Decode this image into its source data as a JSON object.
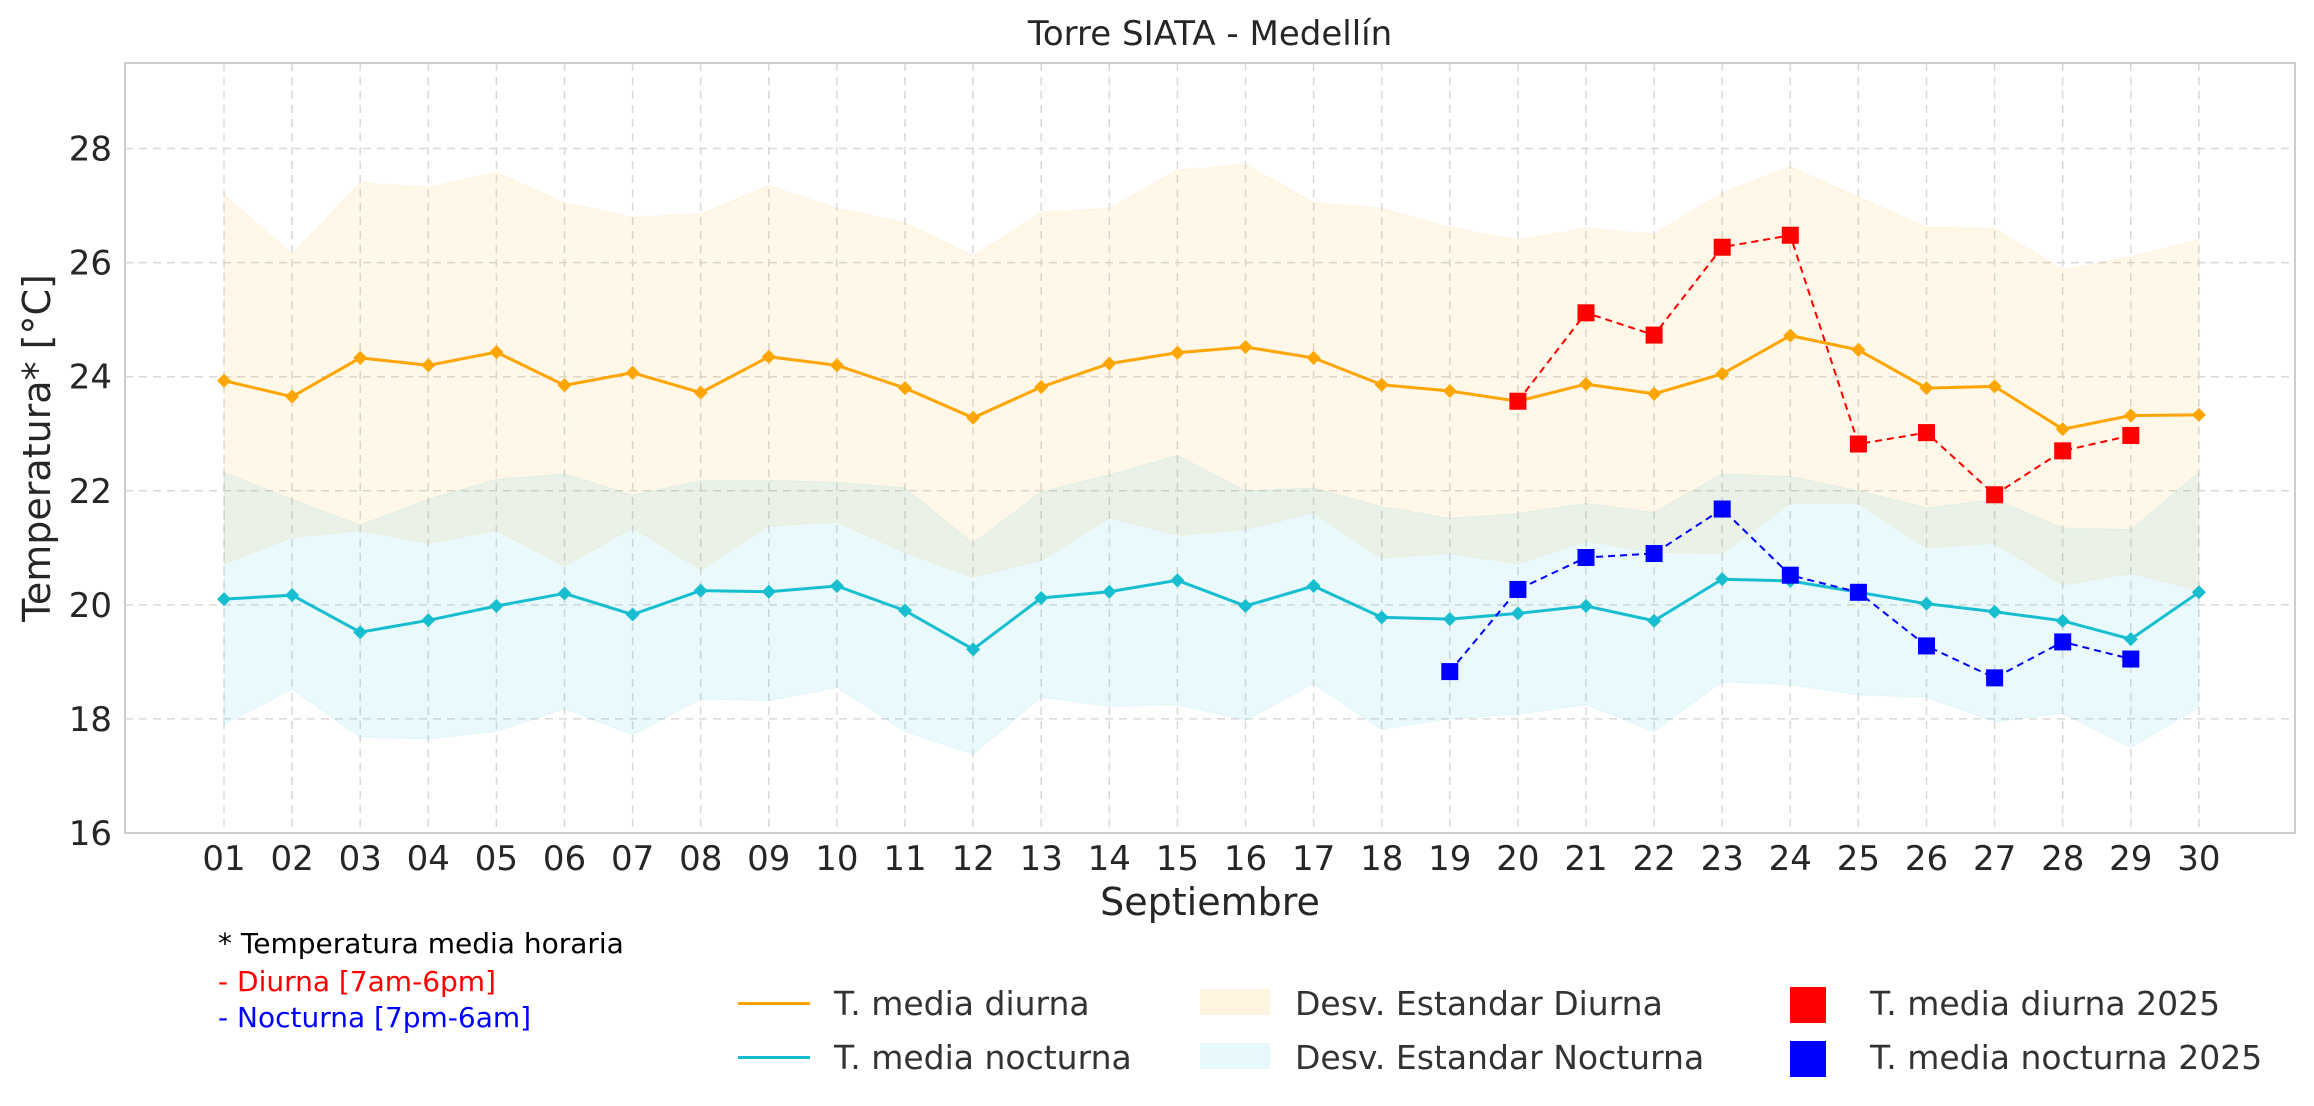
{
  "chart_data": {
    "type": "line",
    "title": "Torre SIATA - Medellín",
    "xlabel": "Septiembre",
    "ylabel": "Temperatura* [°C]",
    "categories": [
      "01",
      "02",
      "03",
      "04",
      "05",
      "06",
      "07",
      "08",
      "09",
      "10",
      "11",
      "12",
      "13",
      "14",
      "15",
      "16",
      "17",
      "18",
      "19",
      "20",
      "21",
      "22",
      "23",
      "24",
      "25",
      "26",
      "27",
      "28",
      "29",
      "30"
    ],
    "ylim": [
      16,
      29.5
    ],
    "yticks": [
      16,
      18,
      20,
      22,
      24,
      26,
      28
    ],
    "grid": true,
    "series": [
      {
        "name": "T. media diurna",
        "color": "#ffa500",
        "style": "solid-diamond",
        "values": [
          23.93,
          23.65,
          24.33,
          24.2,
          24.43,
          23.85,
          24.07,
          23.72,
          24.35,
          24.2,
          23.8,
          23.28,
          23.82,
          24.23,
          24.42,
          24.52,
          24.33,
          23.86,
          23.75,
          23.57,
          23.87,
          23.7,
          24.05,
          24.72,
          24.47,
          23.8,
          23.83,
          23.08,
          23.32,
          23.33
        ]
      },
      {
        "name": "T. media nocturna",
        "color": "#17becf",
        "style": "solid-diamond",
        "values": [
          20.1,
          20.17,
          19.52,
          19.73,
          19.98,
          20.2,
          19.83,
          20.25,
          20.23,
          20.33,
          19.9,
          19.22,
          20.12,
          20.23,
          20.43,
          19.98,
          20.33,
          19.78,
          19.75,
          19.85,
          19.98,
          19.72,
          20.45,
          20.42,
          20.22,
          20.02,
          19.88,
          19.72,
          19.4,
          20.22
        ]
      },
      {
        "name": "Desv. Estandar Diurna",
        "color": "#ffa500",
        "style": "band",
        "upper": [
          27.2,
          26.15,
          27.4,
          27.32,
          27.58,
          27.05,
          26.8,
          26.85,
          27.35,
          26.95,
          26.7,
          26.12,
          26.88,
          26.95,
          27.62,
          27.72,
          27.05,
          26.95,
          26.62,
          26.4,
          26.6,
          26.5,
          27.22,
          27.68,
          27.15,
          26.62,
          26.6,
          25.88,
          26.1,
          26.4
        ],
        "lower": [
          20.72,
          21.18,
          21.3,
          21.08,
          21.3,
          20.68,
          21.35,
          20.62,
          21.38,
          21.45,
          20.92,
          20.48,
          20.78,
          21.52,
          21.22,
          21.32,
          21.62,
          20.82,
          20.9,
          20.72,
          21.12,
          20.92,
          20.9,
          21.78,
          21.78,
          21.0,
          21.08,
          20.35,
          20.55,
          20.25
        ]
      },
      {
        "name": "Desv. Estandar Nocturna",
        "color": "#17becf",
        "style": "band",
        "upper": [
          22.32,
          21.85,
          21.4,
          21.85,
          22.2,
          22.3,
          21.92,
          22.18,
          22.18,
          22.15,
          22.05,
          21.08,
          21.98,
          22.28,
          22.62,
          22.0,
          22.05,
          21.72,
          21.52,
          21.6,
          21.78,
          21.62,
          22.3,
          22.25,
          22.0,
          21.7,
          21.85,
          21.35,
          21.32,
          22.32
        ],
        "lower": [
          17.9,
          18.52,
          17.68,
          17.65,
          17.78,
          18.18,
          17.72,
          18.35,
          18.32,
          18.55,
          17.78,
          17.38,
          18.38,
          18.22,
          18.25,
          17.98,
          18.62,
          17.82,
          18.0,
          18.08,
          18.25,
          17.78,
          18.65,
          18.6,
          18.42,
          18.38,
          17.95,
          18.1,
          17.5,
          18.2
        ]
      },
      {
        "name": "T. media diurna 2025",
        "color": "#ff0000",
        "style": "dashed-square",
        "x": [
          "20",
          "21",
          "22",
          "23",
          "24",
          "25",
          "26",
          "27",
          "28",
          "29"
        ],
        "values": [
          23.57,
          25.12,
          24.73,
          26.27,
          26.48,
          22.82,
          23.02,
          21.93,
          22.7,
          22.97
        ]
      },
      {
        "name": "T. media nocturna 2025",
        "color": "#0000ff",
        "style": "dashed-square",
        "x": [
          "19",
          "20",
          "21",
          "22",
          "23",
          "24",
          "25",
          "26",
          "27",
          "28",
          "29"
        ],
        "values": [
          18.83,
          20.27,
          20.83,
          20.9,
          21.68,
          20.52,
          20.22,
          19.28,
          18.72,
          19.35,
          19.05
        ]
      }
    ],
    "legend_placement": "bottom-center"
  },
  "notes": {
    "line1": "* Temperatura media horaria",
    "line2": "- Diurna [7am-6pm]",
    "line3": "- Nocturna [7pm-6am]"
  },
  "legend": {
    "line_day": "T. media diurna",
    "line_night": "T. media nocturna",
    "band_day": "Desv. Estandar Diurna",
    "band_night": "Desv. Estandar Nocturna",
    "marker_day": "T. media diurna 2025",
    "marker_night": "T. media nocturna 2025"
  }
}
